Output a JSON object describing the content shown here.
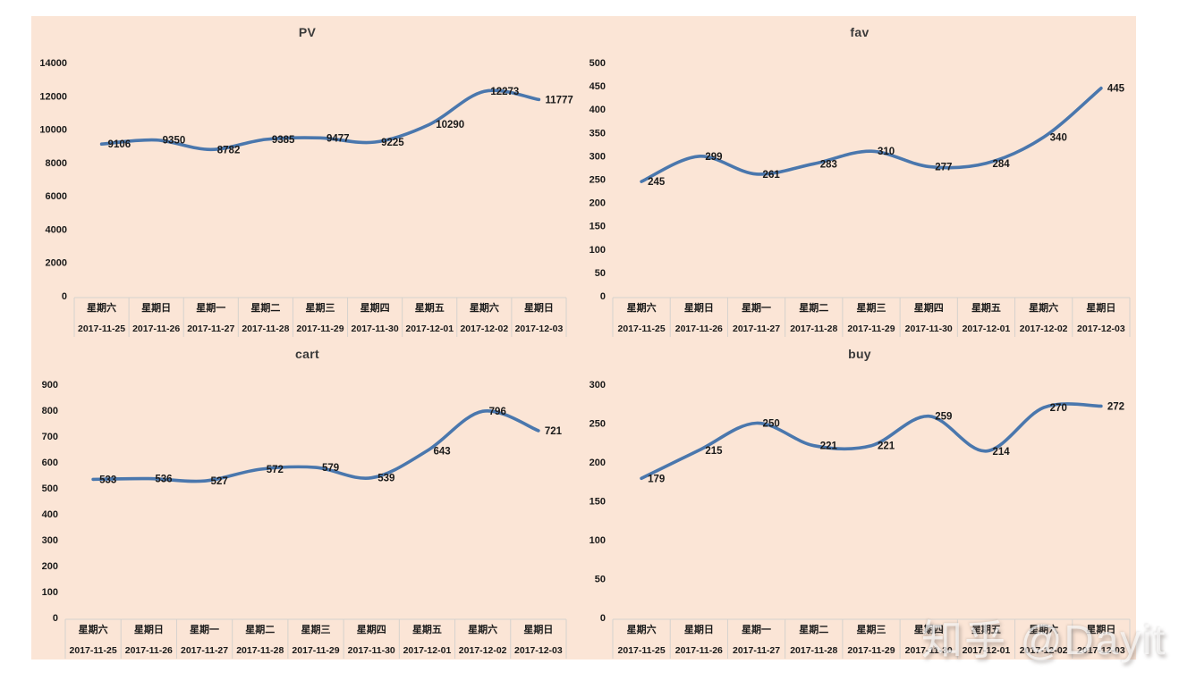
{
  "colors": {
    "page_bg": "#ffffff",
    "panel_bg": "#fbe5d6",
    "line": "#4a77ad",
    "label_text": "#1a1a1a",
    "title_text": "#3a3a3a",
    "axis_border": "#d6d2cd"
  },
  "watermark": {
    "text": "知乎 @Dayit"
  },
  "chart_data": {
    "type": "line",
    "grid": false,
    "legend": null,
    "smoothed": true,
    "data_labels": "right-of-point",
    "x_axis": {
      "weekdays": [
        "星期六",
        "星期日",
        "星期一",
        "星期二",
        "星期三",
        "星期四",
        "星期五",
        "星期六",
        "星期日"
      ],
      "dates": [
        "2017-11-25",
        "2017-11-26",
        "2017-11-27",
        "2017-11-28",
        "2017-11-29",
        "2017-11-30",
        "2017-12-01",
        "2017-12-02",
        "2017-12-03"
      ]
    },
    "charts": [
      {
        "title": "PV",
        "values": [
          9106,
          9350,
          8782,
          9385,
          9477,
          9225,
          10290,
          12273,
          11777
        ],
        "ylim": [
          0,
          14000
        ],
        "ystep": 2000
      },
      {
        "title": "fav",
        "values": [
          245,
          299,
          261,
          283,
          310,
          277,
          284,
          340,
          445
        ],
        "ylim": [
          0,
          500
        ],
        "ystep": 50
      },
      {
        "title": "cart",
        "values": [
          533,
          536,
          527,
          572,
          579,
          539,
          643,
          796,
          721
        ],
        "ylim": [
          0,
          900
        ],
        "ystep": 100
      },
      {
        "title": "buy",
        "values": [
          179,
          215,
          250,
          221,
          221,
          259,
          214,
          270,
          272
        ],
        "ylim": [
          0,
          300
        ],
        "ystep": 50
      }
    ]
  }
}
